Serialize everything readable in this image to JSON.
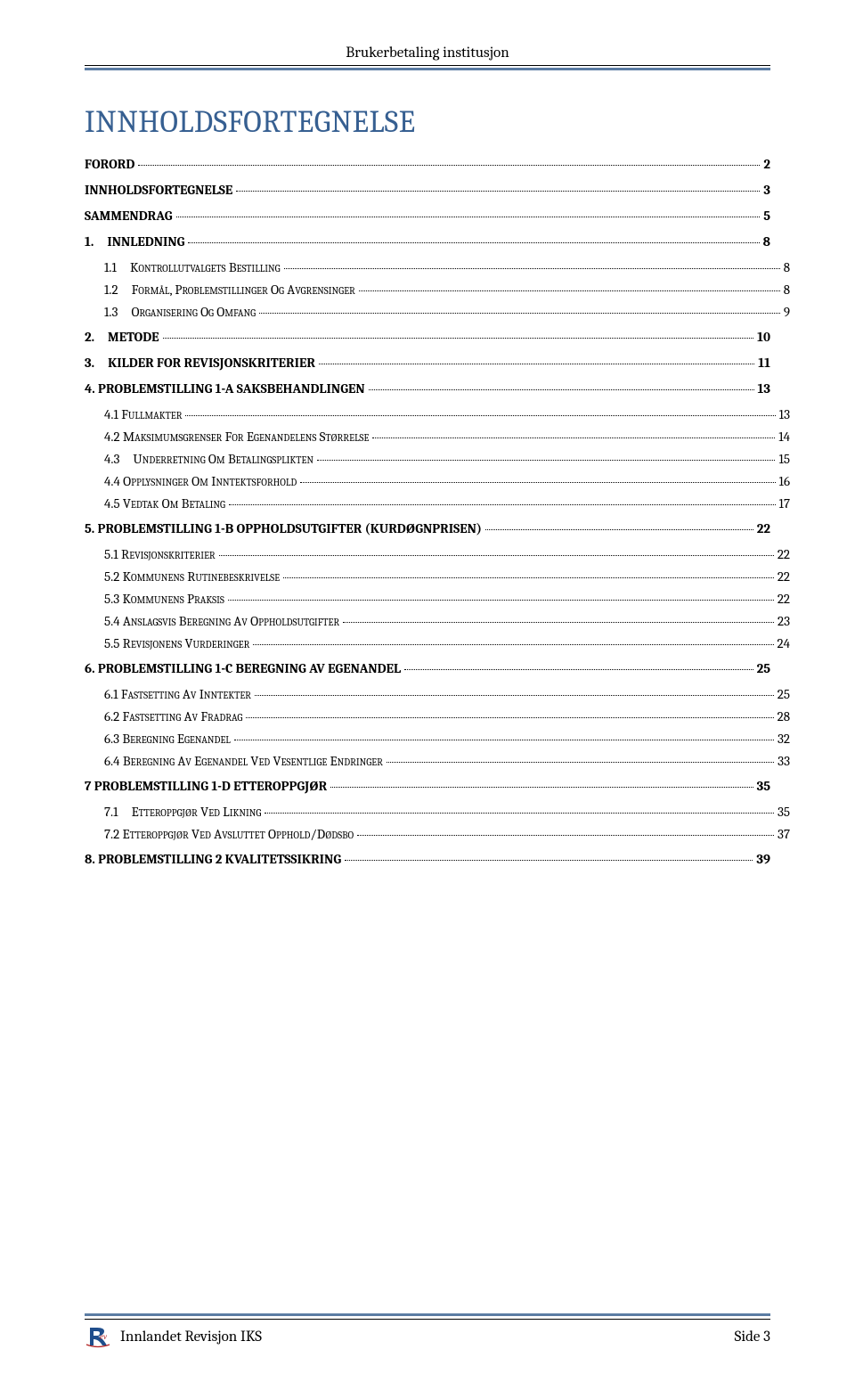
{
  "header_text": "Brukerbetaling institusjon",
  "title": "INNHOLDSFORTEGNELSE",
  "toc": [
    {
      "level": 1,
      "label": "FORORD",
      "page": "2",
      "bold": true
    },
    {
      "level": 1,
      "label": "INNHOLDSFORTEGNELSE",
      "page": "3",
      "bold": true
    },
    {
      "level": 1,
      "label": "SAMMENDRAG",
      "page": "5",
      "bold": true
    },
    {
      "level": 1,
      "label": "1. INNLEDNING",
      "page": "8",
      "bold": true
    },
    {
      "level": 2,
      "label": "1.1 KONTROLLUTVALGETS BESTILLING",
      "page": "8"
    },
    {
      "level": 2,
      "label": "1.2 FORMÅL, PROBLEMSTILLINGER OG AVGRENSINGER",
      "page": "8"
    },
    {
      "level": 2,
      "label": "1.3 ORGANISERING OG OMFANG",
      "page": "9"
    },
    {
      "level": 1,
      "label": "2. METODE",
      "page": "10",
      "bold": true
    },
    {
      "level": 1,
      "label": "3. KILDER FOR REVISJONSKRITERIER",
      "page": "11",
      "bold": true
    },
    {
      "level": 1,
      "label": "4. PROBLEMSTILLING 1-A SAKSBEHANDLINGEN",
      "page": "13",
      "bold": true
    },
    {
      "level": 2,
      "label": "4.1 FULLMAKTER",
      "page": "13"
    },
    {
      "level": 2,
      "label": "4.2 MAKSIMUMSGRENSER FOR EGENANDELENS STØRRELSE",
      "page": "14"
    },
    {
      "level": 2,
      "label": "4.3 UNDERRETNING OM BETALINGSPLIKTEN",
      "page": "15"
    },
    {
      "level": 2,
      "label": "4.4 OPPLYSNINGER OM INNTEKTSFORHOLD",
      "page": "16"
    },
    {
      "level": 2,
      "label": "4.5 VEDTAK OM BETALING",
      "page": "17"
    },
    {
      "level": 1,
      "label": "5. PROBLEMSTILLING 1-B OPPHOLDSUTGIFTER (KURDØGNPRISEN)",
      "page": "22",
      "bold": true
    },
    {
      "level": 2,
      "label": "5.1 REVISJONSKRITERIER",
      "page": "22"
    },
    {
      "level": 2,
      "label": "5.2 KOMMUNENS RUTINEBESKRIVELSE",
      "page": "22"
    },
    {
      "level": 2,
      "label": "5.3 KOMMUNENS PRAKSIS",
      "page": "22"
    },
    {
      "level": 2,
      "label": "5.4 ANSLAGSVIS BEREGNING AV OPPHOLDSUTGIFTER",
      "page": "23"
    },
    {
      "level": 2,
      "label": "5.5 REVISJONENS VURDERINGER",
      "page": "24"
    },
    {
      "level": 1,
      "label": "6. PROBLEMSTILLING 1-C BEREGNING AV EGENANDEL",
      "page": "25",
      "bold": true
    },
    {
      "level": 2,
      "label": "6.1 FASTSETTING AV INNTEKTER",
      "page": "25"
    },
    {
      "level": 2,
      "label": "6.2 FASTSETTING AV FRADRAG",
      "page": "28"
    },
    {
      "level": 2,
      "label": "6.3 BEREGNING EGENANDEL",
      "page": "32"
    },
    {
      "level": 2,
      "label": "6.4 BEREGNING AV EGENANDEL VED VESENTLIGE ENDRINGER",
      "page": "33"
    },
    {
      "level": 1,
      "label": "7 PROBLEMSTILLING 1-D  ETTEROPPGJØR",
      "page": "35",
      "bold": true
    },
    {
      "level": 2,
      "label": "7.1 ETTEROPPGJØR VED LIKNING",
      "page": "35"
    },
    {
      "level": 2,
      "label": "7.2 ETTEROPPGJØR VED AVSLUTTET OPPHOLD/DØDSBO",
      "page": "37"
    },
    {
      "level": 1,
      "label": "8. PROBLEMSTILLING 2 KVALITETSSIKRING",
      "page": "39",
      "bold": true
    }
  ],
  "footer_left": "Innlandet Revisjon IKS",
  "footer_right": "Side 3",
  "colors": {
    "heading": "#365f91",
    "accent_line": "#5b7ca3",
    "text": "#000000",
    "background": "#ffffff"
  }
}
